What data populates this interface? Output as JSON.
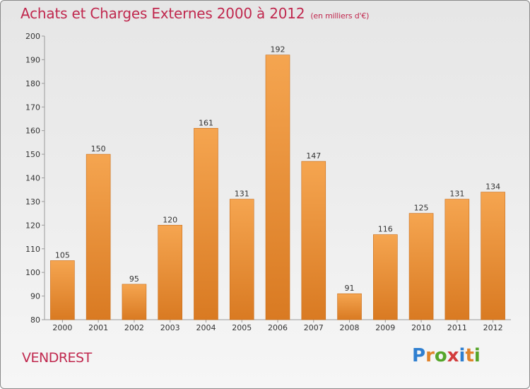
{
  "header": {
    "title": "Achats et Charges Externes 2000 à 2012",
    "unit": "(en milliers d'€)"
  },
  "commune": "VENDREST",
  "logo": {
    "text": "Proxiti",
    "letters": [
      {
        "ch": "P",
        "color": "#2f7fd0"
      },
      {
        "ch": "r",
        "color": "#e0832a"
      },
      {
        "ch": "o",
        "color": "#55a52a"
      },
      {
        "ch": "x",
        "color": "#d23c3c"
      },
      {
        "ch": "i",
        "color": "#2f7fd0"
      },
      {
        "ch": "t",
        "color": "#e0832a"
      },
      {
        "ch": "i",
        "color": "#55a52a"
      }
    ]
  },
  "colors": {
    "bar_top": "#f5a550",
    "bar_bottom": "#d97a22",
    "bar_stroke": "#c96e1c",
    "title": "#c0284e"
  },
  "chart_data": {
    "type": "bar",
    "categories": [
      "2000",
      "2001",
      "2002",
      "2003",
      "2004",
      "2005",
      "2006",
      "2007",
      "2008",
      "2009",
      "2010",
      "2011",
      "2012"
    ],
    "values": [
      105,
      150,
      95,
      120,
      161,
      131,
      192,
      147,
      91,
      116,
      125,
      131,
      134
    ],
    "title": "Achats et Charges Externes 2000 à 2012",
    "ylim": [
      80,
      200
    ],
    "yticks": [
      80,
      90,
      100,
      110,
      120,
      130,
      140,
      150,
      160,
      170,
      180,
      190,
      200
    ],
    "grid": false,
    "data_labels": true
  }
}
